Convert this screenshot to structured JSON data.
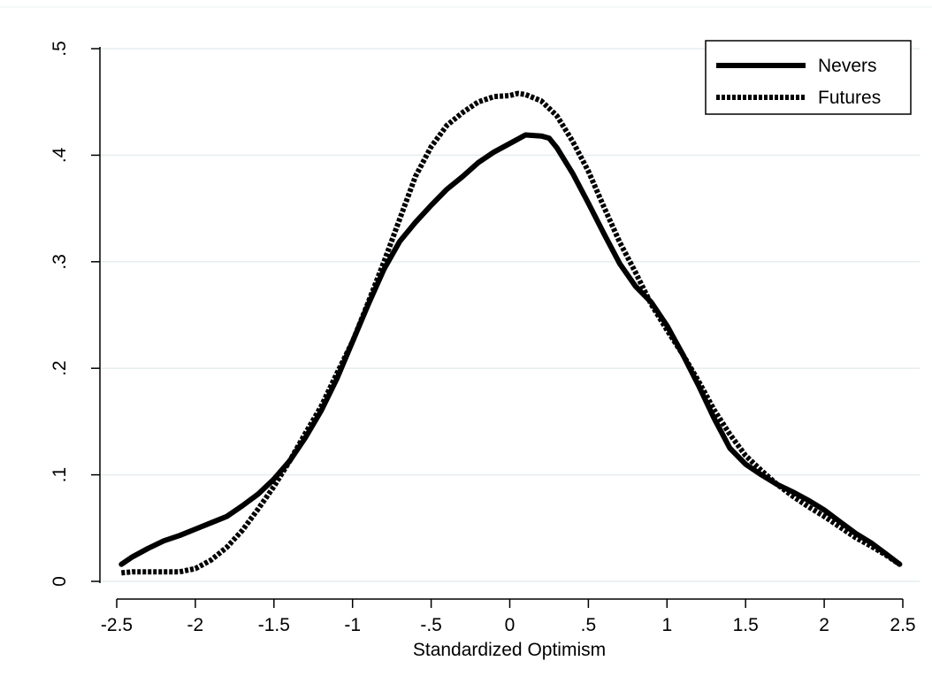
{
  "chart_data": {
    "type": "line",
    "title": "",
    "xlabel": "Standardized Optimism",
    "ylabel": "",
    "xlim": [
      -2.5,
      2.5
    ],
    "ylim": [
      0,
      0.5
    ],
    "x_ticks": [
      "-2.5",
      "-2",
      "-1.5",
      "-1",
      "-.5",
      "0",
      ".5",
      "1",
      "1.5",
      "2",
      "2.5"
    ],
    "x_tick_values": [
      -2.5,
      -2,
      -1.5,
      -1,
      -0.5,
      0,
      0.5,
      1,
      1.5,
      2,
      2.5
    ],
    "y_ticks": [
      "0",
      ".1",
      ".2",
      ".3",
      ".4",
      ".5"
    ],
    "y_tick_values": [
      0,
      0.1,
      0.2,
      0.3,
      0.4,
      0.5
    ],
    "grid": true,
    "legend_position": "top-right",
    "series": [
      {
        "name": "Nevers",
        "style": "solid",
        "color": "#000000",
        "x": [
          -2.47,
          -2.4,
          -2.3,
          -2.2,
          -2.1,
          -2.0,
          -1.9,
          -1.8,
          -1.7,
          -1.6,
          -1.5,
          -1.4,
          -1.3,
          -1.2,
          -1.1,
          -1.0,
          -0.9,
          -0.8,
          -0.7,
          -0.6,
          -0.5,
          -0.4,
          -0.3,
          -0.2,
          -0.1,
          0.0,
          0.1,
          0.2,
          0.25,
          0.3,
          0.4,
          0.5,
          0.6,
          0.7,
          0.8,
          0.9,
          1.0,
          1.1,
          1.2,
          1.3,
          1.4,
          1.5,
          1.6,
          1.7,
          1.8,
          1.9,
          2.0,
          2.1,
          2.2,
          2.3,
          2.4,
          2.48
        ],
        "y": [
          0.016,
          0.023,
          0.031,
          0.038,
          0.043,
          0.049,
          0.055,
          0.061,
          0.071,
          0.082,
          0.096,
          0.113,
          0.135,
          0.16,
          0.19,
          0.225,
          0.26,
          0.293,
          0.319,
          0.337,
          0.353,
          0.368,
          0.38,
          0.393,
          0.403,
          0.411,
          0.419,
          0.418,
          0.416,
          0.407,
          0.383,
          0.355,
          0.326,
          0.298,
          0.277,
          0.262,
          0.24,
          0.213,
          0.184,
          0.153,
          0.125,
          0.11,
          0.1,
          0.091,
          0.084,
          0.076,
          0.067,
          0.056,
          0.045,
          0.036,
          0.025,
          0.016
        ]
      },
      {
        "name": "Futures",
        "style": "dotted",
        "color": "#000000",
        "x": [
          -2.47,
          -2.4,
          -2.3,
          -2.2,
          -2.1,
          -2.0,
          -1.9,
          -1.8,
          -1.7,
          -1.6,
          -1.5,
          -1.4,
          -1.3,
          -1.2,
          -1.1,
          -1.0,
          -0.9,
          -0.8,
          -0.7,
          -0.6,
          -0.5,
          -0.4,
          -0.3,
          -0.2,
          -0.1,
          0.0,
          0.05,
          0.1,
          0.2,
          0.3,
          0.4,
          0.5,
          0.6,
          0.7,
          0.8,
          0.9,
          1.0,
          1.1,
          1.2,
          1.3,
          1.4,
          1.5,
          1.6,
          1.7,
          1.8,
          1.9,
          2.0,
          2.1,
          2.2,
          2.3,
          2.4,
          2.48
        ],
        "y": [
          0.008,
          0.009,
          0.009,
          0.009,
          0.009,
          0.012,
          0.02,
          0.032,
          0.048,
          0.068,
          0.089,
          0.113,
          0.139,
          0.164,
          0.195,
          0.225,
          0.262,
          0.3,
          0.34,
          0.38,
          0.408,
          0.428,
          0.44,
          0.45,
          0.455,
          0.456,
          0.458,
          0.457,
          0.451,
          0.437,
          0.413,
          0.385,
          0.351,
          0.318,
          0.29,
          0.26,
          0.236,
          0.213,
          0.188,
          0.161,
          0.138,
          0.118,
          0.104,
          0.091,
          0.08,
          0.07,
          0.061,
          0.051,
          0.041,
          0.033,
          0.024,
          0.016
        ]
      }
    ]
  }
}
